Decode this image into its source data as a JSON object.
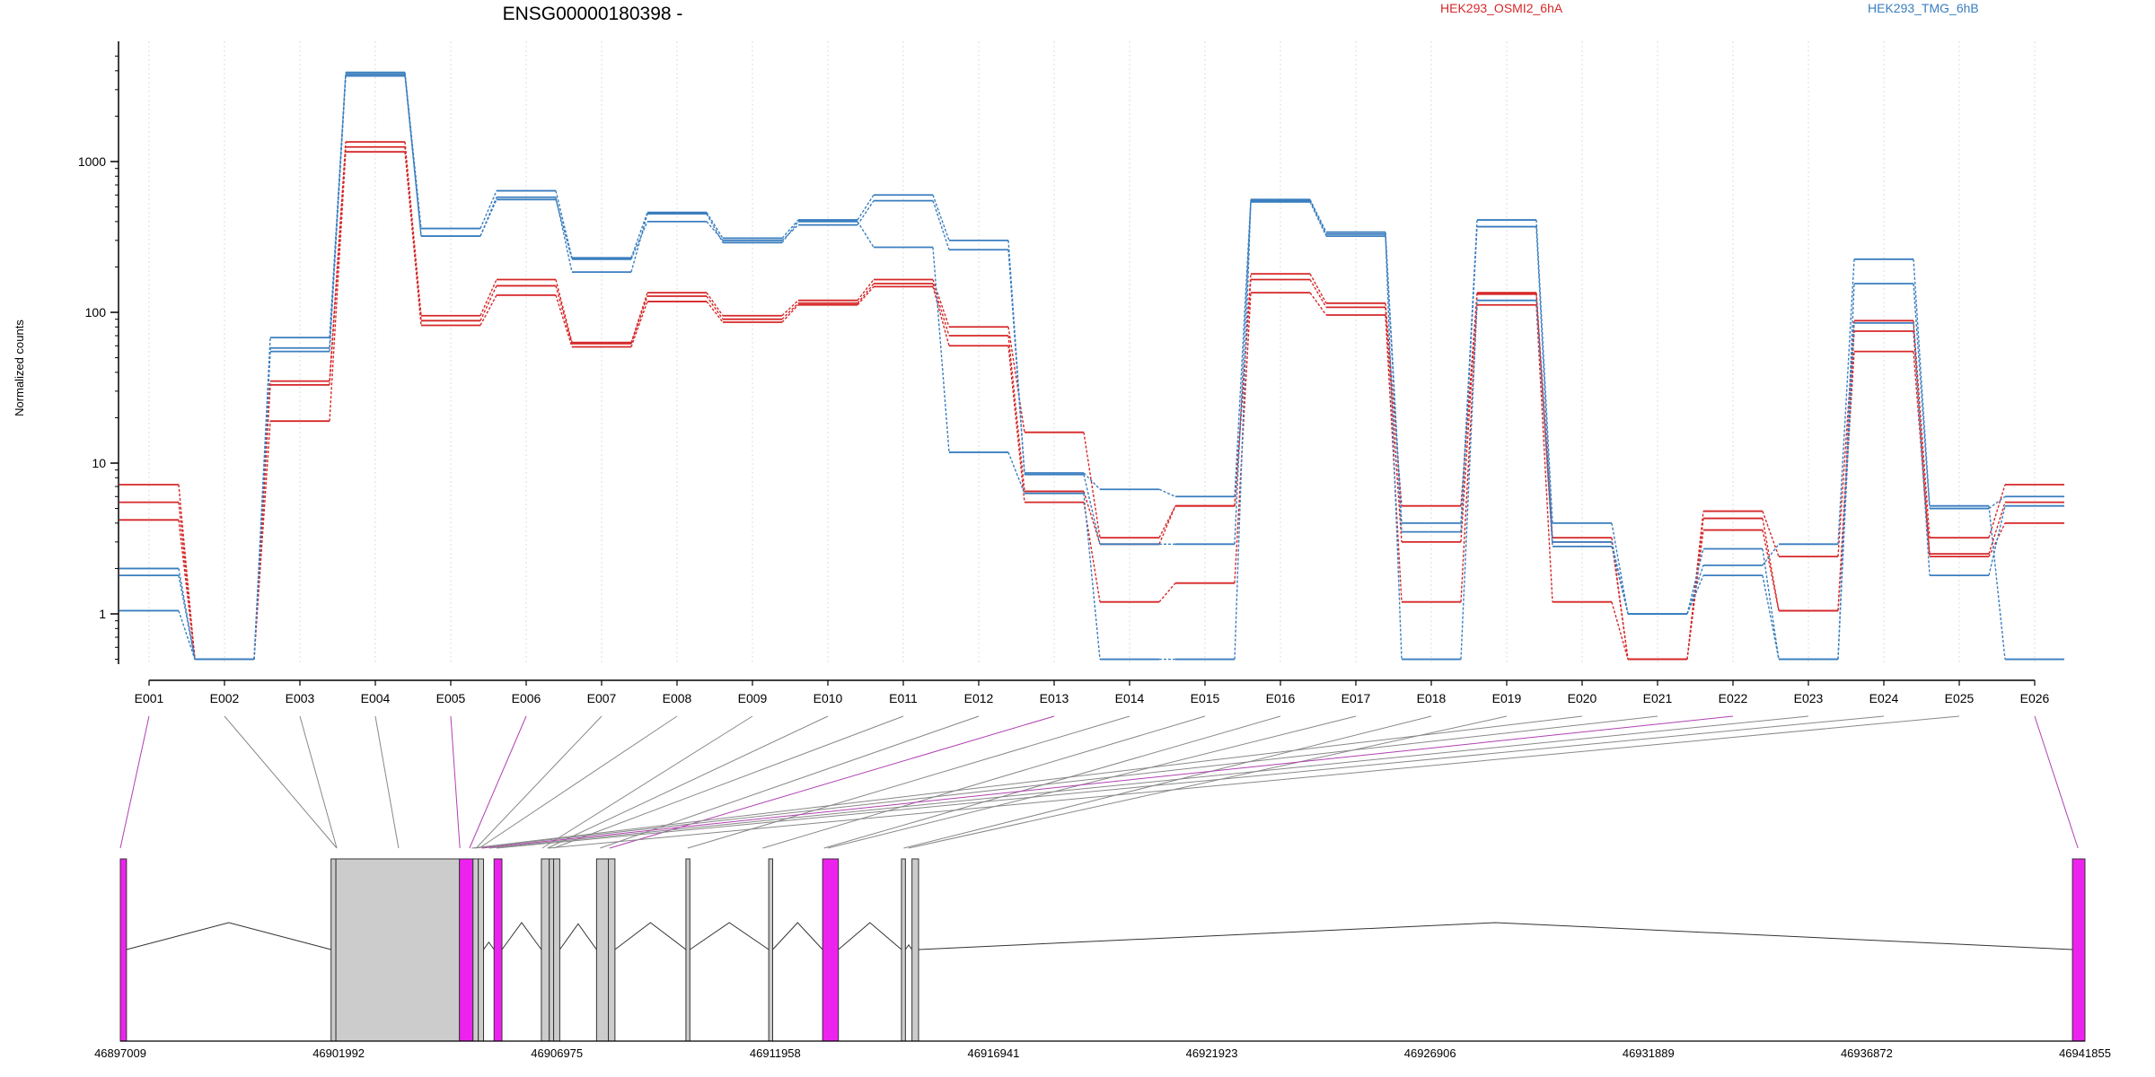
{
  "chart_data": {
    "type": "line",
    "title": "ENSG00000180398 -",
    "ylabel": "Normalized counts",
    "yscale": "log",
    "ylim": [
      0.5,
      5000
    ],
    "yticks": [
      1,
      10,
      100,
      1000
    ],
    "ytick_labels": [
      "1",
      "10",
      "100",
      "1000"
    ],
    "grid": "vertical dotted lines at each exon",
    "legend": {
      "placement": "top",
      "entries": [
        {
          "label": "HEK293_OSMI2_6hA",
          "color": "#d62728"
        },
        {
          "label": "HEK293_TMG_6hB",
          "color": "#3a7ebf"
        }
      ]
    },
    "categories": [
      "E001",
      "E002",
      "E003",
      "E004",
      "E005",
      "E006",
      "E007",
      "E008",
      "E009",
      "E010",
      "E011",
      "E012",
      "E013",
      "E014",
      "E015",
      "E016",
      "E017",
      "E018",
      "E019",
      "E020",
      "E021",
      "E022",
      "E023",
      "E024",
      "E025",
      "E026"
    ],
    "series": [
      {
        "group": "HEK293_OSMI2_6hA",
        "color": "#d62728",
        "values": [
          7.2,
          0.5,
          35,
          1350,
          95,
          165,
          63,
          135,
          95,
          120,
          165,
          80,
          16,
          3.2,
          5.2,
          180,
          115,
          5.2,
          135,
          3.2,
          0.5,
          4.8,
          2.4,
          88,
          3.2,
          7.2
        ]
      },
      {
        "group": "HEK293_OSMI2_6hA",
        "color": "#d62728",
        "values": [
          5.5,
          0.5,
          33,
          1250,
          88,
          150,
          62,
          128,
          90,
          115,
          155,
          70,
          6.5,
          2.9,
          5.2,
          165,
          108,
          3.0,
          132,
          3.0,
          0.5,
          4.3,
          1.05,
          75,
          2.5,
          5.5
        ]
      },
      {
        "group": "HEK293_OSMI2_6hA",
        "color": "#d62728",
        "values": [
          4.2,
          0.5,
          19,
          1160,
          82,
          130,
          59,
          118,
          86,
          112,
          148,
          60,
          5.5,
          1.2,
          1.6,
          135,
          96,
          1.2,
          112,
          1.2,
          0.5,
          3.6,
          1.05,
          55,
          2.4,
          4.0
        ]
      },
      {
        "group": "HEK293_TMG_6hB",
        "color": "#3a7ebf",
        "values": [
          2.0,
          0.5,
          68,
          3900,
          360,
          640,
          230,
          460,
          310,
          410,
          600,
          300,
          8.6,
          6.7,
          6.0,
          560,
          340,
          4.0,
          410,
          4.0,
          1.0,
          2.1,
          2.9,
          225,
          5.2,
          0.5
        ]
      },
      {
        "group": "HEK293_TMG_6hB",
        "color": "#3a7ebf",
        "values": [
          1.8,
          0.5,
          55,
          3700,
          320,
          560,
          225,
          400,
          300,
          380,
          550,
          260,
          8.4,
          2.9,
          2.9,
          540,
          320,
          3.5,
          370,
          3.0,
          1.0,
          1.8,
          0.5,
          155,
          5.0,
          6.0
        ]
      },
      {
        "group": "HEK293_TMG_6hB",
        "color": "#3a7ebf",
        "values": [
          1.05,
          0.5,
          58,
          3800,
          320,
          580,
          185,
          450,
          290,
          400,
          270,
          11.8,
          6.3,
          0.5,
          0.5,
          550,
          330,
          0.5,
          120,
          2.8,
          1.0,
          2.7,
          0.5,
          85,
          1.8,
          5.2
        ]
      }
    ],
    "gene_model": {
      "coordinate_labels": [
        "46897009",
        "46901992",
        "46906975",
        "46911958",
        "46916941",
        "46921923",
        "46926906",
        "46931889",
        "46936872",
        "46941855"
      ],
      "exons": [
        {
          "start": 46897009,
          "end": 46897150,
          "highlight": true
        },
        {
          "start": 46901820,
          "end": 46901930,
          "highlight": false
        },
        {
          "start": 46901930,
          "end": 46904750,
          "highlight": false
        },
        {
          "start": 46904750,
          "end": 46905060,
          "highlight": true
        },
        {
          "start": 46905060,
          "end": 46905180,
          "highlight": false
        },
        {
          "start": 46905180,
          "end": 46905300,
          "highlight": false
        },
        {
          "start": 46905540,
          "end": 46905720,
          "highlight": true
        },
        {
          "start": 46906620,
          "end": 46906800,
          "highlight": false
        },
        {
          "start": 46906800,
          "end": 46906900,
          "highlight": false
        },
        {
          "start": 46906900,
          "end": 46907040,
          "highlight": false
        },
        {
          "start": 46907880,
          "end": 46908150,
          "highlight": false
        },
        {
          "start": 46908150,
          "end": 46908300,
          "highlight": false
        },
        {
          "start": 46909920,
          "end": 46910010,
          "highlight": false
        },
        {
          "start": 46911810,
          "end": 46911900,
          "highlight": false
        },
        {
          "start": 46913040,
          "end": 46913400,
          "highlight": true
        },
        {
          "start": 46914840,
          "end": 46914930,
          "highlight": false
        },
        {
          "start": 46915080,
          "end": 46915230,
          "highlight": false
        },
        {
          "start": 46941570,
          "end": 46941855,
          "highlight": true
        }
      ],
      "mapping_points": [
        46897009,
        46901950,
        46901950,
        46903360,
        46904760,
        46904980,
        46905130,
        46905200,
        46906640,
        46906760,
        46906900,
        46907960,
        46908180,
        46909960,
        46911670,
        46913070,
        46913160,
        46914890,
        46915000,
        46905030,
        46905090,
        46905260,
        46905430,
        46905600,
        46906780,
        46941695
      ],
      "highlight_exons": [
        "E001",
        "E005",
        "E006",
        "E013",
        "E022",
        "E026"
      ]
    }
  }
}
